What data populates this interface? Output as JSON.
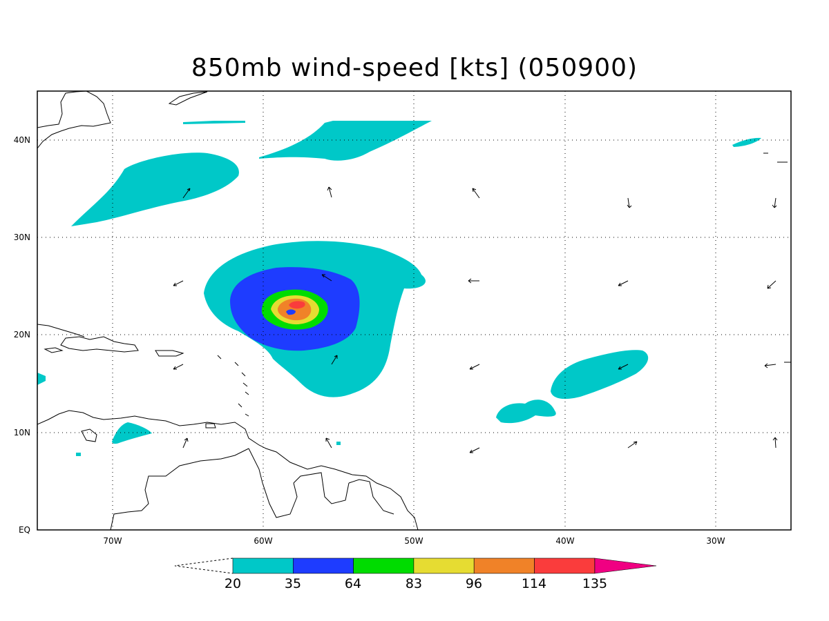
{
  "title": "850mb wind-speed [kts] (050900)",
  "map": {
    "lon_range": [
      -75,
      -25
    ],
    "lat_range": [
      0,
      45
    ],
    "x_ticks": [
      {
        "lon": -70,
        "label": "70W"
      },
      {
        "lon": -60,
        "label": "60W"
      },
      {
        "lon": -50,
        "label": "50W"
      },
      {
        "lon": -40,
        "label": "40W"
      },
      {
        "lon": -30,
        "label": "30W"
      }
    ],
    "y_ticks": [
      {
        "lat": 0,
        "label": "EQ"
      },
      {
        "lat": 10,
        "label": "10N"
      },
      {
        "lat": 20,
        "label": "20N"
      },
      {
        "lat": 30,
        "label": "30N"
      },
      {
        "lat": 40,
        "label": "40N"
      }
    ],
    "grid": "dotted",
    "colors": {
      "c20": "#00c8c8",
      "c35": "#1e3cff",
      "c64": "#00dc00",
      "c83": "#e6dc32",
      "c96": "#f08228",
      "c114": "#fa3c3c",
      "c135": "#f00082"
    }
  },
  "colorbar": {
    "levels": [
      "20",
      "35",
      "64",
      "83",
      "96",
      "114",
      "135"
    ],
    "colors": [
      "#00c8c8",
      "#1e3cff",
      "#00dc00",
      "#e6dc32",
      "#f08228",
      "#fa3c3c"
    ],
    "over_color": "#f00082"
  }
}
